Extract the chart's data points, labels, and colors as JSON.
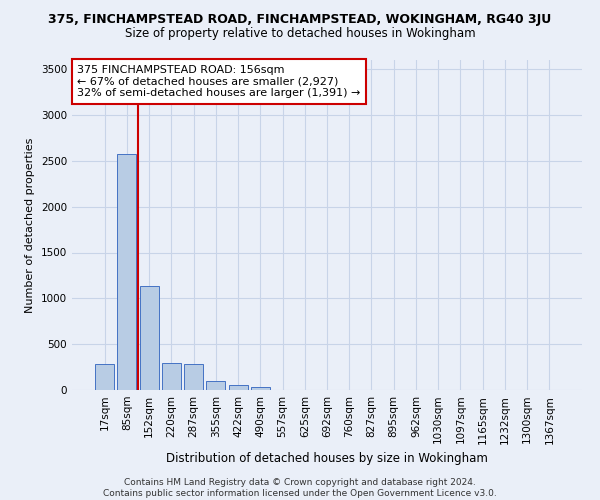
{
  "title1": "375, FINCHAMPSTEAD ROAD, FINCHAMPSTEAD, WOKINGHAM, RG40 3JU",
  "title2": "Size of property relative to detached houses in Wokingham",
  "xlabel": "Distribution of detached houses by size in Wokingham",
  "ylabel": "Number of detached properties",
  "footer1": "Contains HM Land Registry data © Crown copyright and database right 2024.",
  "footer2": "Contains public sector information licensed under the Open Government Licence v3.0.",
  "categories": [
    "17sqm",
    "85sqm",
    "152sqm",
    "220sqm",
    "287sqm",
    "355sqm",
    "422sqm",
    "490sqm",
    "557sqm",
    "625sqm",
    "692sqm",
    "760sqm",
    "827sqm",
    "895sqm",
    "962sqm",
    "1030sqm",
    "1097sqm",
    "1165sqm",
    "1232sqm",
    "1300sqm",
    "1367sqm"
  ],
  "values": [
    280,
    2580,
    1140,
    290,
    280,
    95,
    55,
    35,
    0,
    0,
    0,
    0,
    0,
    0,
    0,
    0,
    0,
    0,
    0,
    0,
    0
  ],
  "bar_color": "#b8cce4",
  "bar_edge_color": "#4472c4",
  "vline_x_index": 1.5,
  "annotation_text1": "375 FINCHAMPSTEAD ROAD: 156sqm",
  "annotation_text2": "← 67% of detached houses are smaller (2,927)",
  "annotation_text3": "32% of semi-detached houses are larger (1,391) →",
  "annotation_box_color": "#ffffff",
  "annotation_box_edge": "#cc0000",
  "vline_color": "#cc0000",
  "grid_color": "#c8d4e8",
  "bg_color": "#eaeff8",
  "ylim": [
    0,
    3600
  ],
  "yticks": [
    0,
    500,
    1000,
    1500,
    2000,
    2500,
    3000,
    3500
  ],
  "title1_fontsize": 9,
  "title2_fontsize": 8.5,
  "ylabel_fontsize": 8,
  "xlabel_fontsize": 8.5,
  "footer_fontsize": 6.5,
  "tick_fontsize": 7.5,
  "annotation_fontsize": 8
}
